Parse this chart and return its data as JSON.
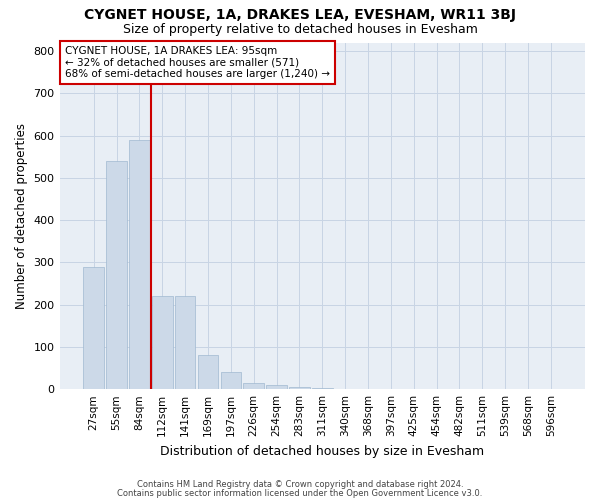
{
  "title": "CYGNET HOUSE, 1A, DRAKES LEA, EVESHAM, WR11 3BJ",
  "subtitle": "Size of property relative to detached houses in Evesham",
  "xlabel": "Distribution of detached houses by size in Evesham",
  "ylabel": "Number of detached properties",
  "categories": [
    "27sqm",
    "55sqm",
    "84sqm",
    "112sqm",
    "141sqm",
    "169sqm",
    "197sqm",
    "226sqm",
    "254sqm",
    "283sqm",
    "311sqm",
    "340sqm",
    "368sqm",
    "397sqm",
    "425sqm",
    "454sqm",
    "482sqm",
    "511sqm",
    "539sqm",
    "568sqm",
    "596sqm"
  ],
  "values": [
    290,
    540,
    590,
    220,
    220,
    80,
    40,
    15,
    10,
    5,
    3,
    0,
    0,
    0,
    0,
    0,
    0,
    0,
    0,
    0,
    0
  ],
  "bar_color": "#ccd9e8",
  "bar_edge_color": "#a0b8d0",
  "vline_color": "#cc0000",
  "vline_pos": 2.5,
  "annotation_text": "CYGNET HOUSE, 1A DRAKES LEA: 95sqm\n← 32% of detached houses are smaller (571)\n68% of semi-detached houses are larger (1,240) →",
  "annotation_box_color": "#ffffff",
  "annotation_box_edge": "#cc0000",
  "footnote1": "Contains HM Land Registry data © Crown copyright and database right 2024.",
  "footnote2": "Contains public sector information licensed under the Open Government Licence v3.0.",
  "ylim": [
    0,
    820
  ],
  "yticks": [
    0,
    100,
    200,
    300,
    400,
    500,
    600,
    700,
    800
  ],
  "background_color": "#ffffff",
  "axes_bg_color": "#e8eef5",
  "grid_color": "#c8d4e4",
  "title_fontsize": 10,
  "subtitle_fontsize": 9,
  "tick_fontsize": 7.5,
  "ylabel_fontsize": 8.5,
  "xlabel_fontsize": 9
}
